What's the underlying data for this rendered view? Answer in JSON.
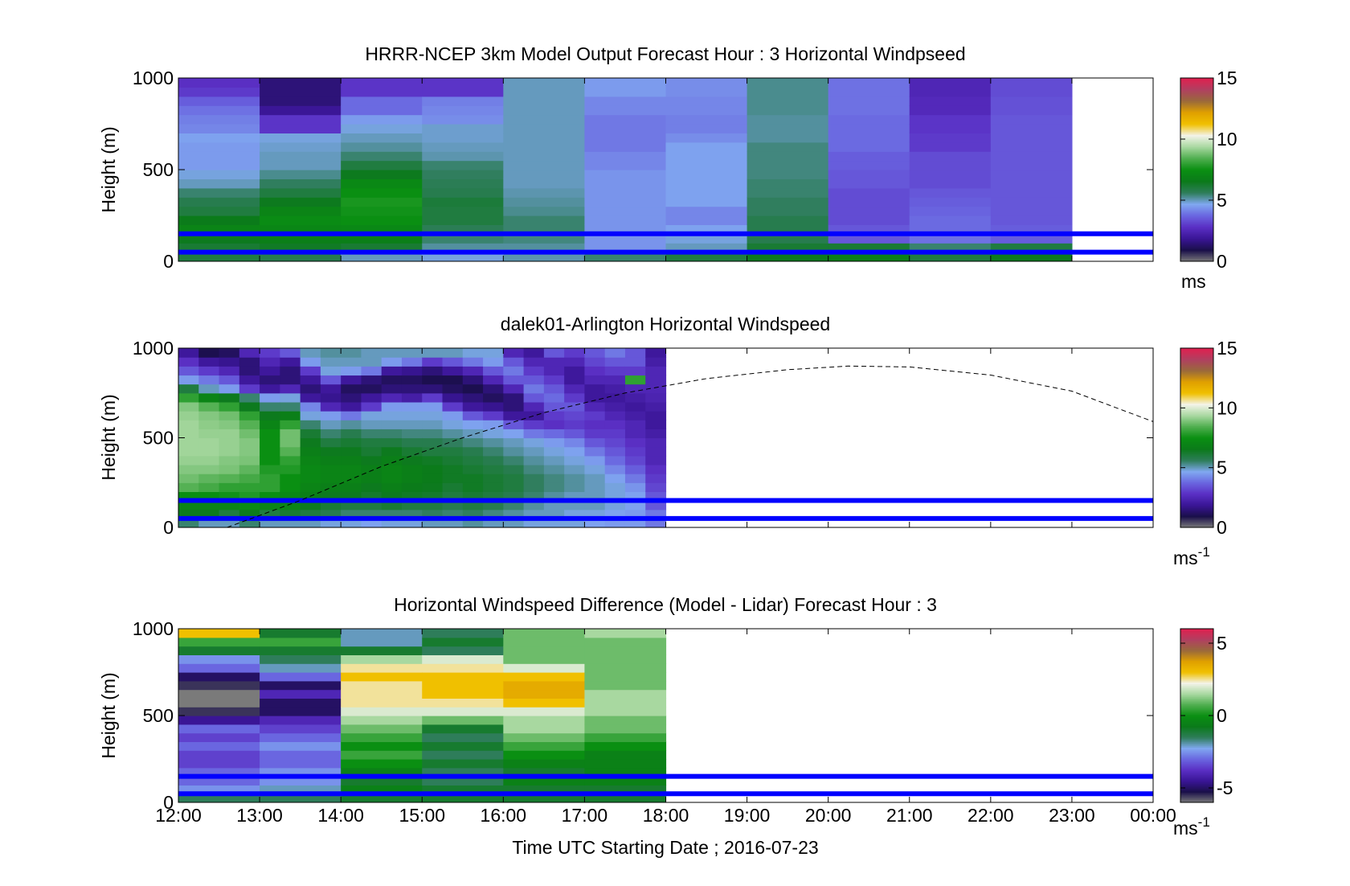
{
  "figure": {
    "xlabel": "Time UTC  Starting Date ; 2016-07-23",
    "x_ticks": [
      "12:00",
      "13:00",
      "14:00",
      "15:00",
      "16:00",
      "17:00",
      "18:00",
      "19:00",
      "20:00",
      "21:00",
      "22:00",
      "23:00",
      "00:00"
    ]
  },
  "colors": {
    "colormap": [
      "#7a7a7a",
      "#1a0f4a",
      "#3a1596",
      "#5a2fc4",
      "#6a66e0",
      "#80a8f0",
      "#2e7d5a",
      "#0b7a1a",
      "#0a8f12",
      "#4fae4f",
      "#a8d8a0",
      "#f3f3e8",
      "#f0c000",
      "#e0a000",
      "#9a6a3a",
      "#b04060",
      "#e02050"
    ],
    "reference_line": "#0000ff",
    "axis": "#000000"
  },
  "chart_data": [
    {
      "type": "heatmap",
      "title": "HRRR-NCEP 3km Model Output   Forecast Hour : 3 Horizontal Windpseed",
      "xlabel": "",
      "ylabel": "Height (m)",
      "xlim": [
        12,
        24
      ],
      "ylim": [
        0,
        1000
      ],
      "y_ticks": [
        0,
        500,
        1000
      ],
      "colorbar": {
        "label": "ms",
        "ticks": [
          0,
          5,
          10,
          15
        ],
        "range": [
          0,
          15
        ]
      },
      "columns_hours": [
        12,
        13,
        14,
        15,
        16,
        17,
        18,
        19,
        20,
        21,
        22
      ],
      "column_width_hours": 1,
      "heights": [
        25,
        75,
        125,
        175,
        225,
        275,
        325,
        375,
        425,
        475,
        525,
        575,
        625,
        675,
        725,
        775,
        825,
        875,
        925,
        975
      ],
      "values": [
        [
          6.0,
          6.2,
          6.5,
          7.0,
          6.6,
          6.0,
          5.8,
          5.5,
          5.0,
          4.8,
          4.5,
          4.5,
          4.5,
          4.6,
          4.2,
          4.1,
          3.9,
          3.6,
          3.0,
          2.8
        ],
        [
          5.8,
          6.4,
          6.8,
          7.1,
          7.3,
          7.0,
          6.5,
          6.0,
          5.6,
          5.3,
          5.0,
          5.0,
          4.9,
          4.8,
          2.9,
          2.9,
          1.9,
          1.5,
          1.5,
          1.5
        ],
        [
          5.0,
          6.2,
          6.8,
          7.2,
          7.5,
          7.6,
          7.7,
          7.5,
          7.2,
          6.5,
          6.0,
          5.5,
          5.2,
          5.0,
          4.8,
          4.5,
          3.8,
          3.8,
          2.9,
          2.9
        ],
        [
          4.8,
          5.2,
          5.5,
          5.7,
          6.0,
          6.0,
          6.1,
          5.8,
          5.7,
          5.6,
          5.5,
          5.1,
          5.0,
          4.9,
          4.9,
          4.3,
          4.2,
          4.1,
          2.9,
          2.9
        ],
        [
          5.1,
          5.2,
          5.4,
          5.5,
          5.5,
          5.3,
          5.2,
          5.1,
          5.0,
          5.0,
          5.0,
          5.0,
          5.0,
          5.0,
          5.0,
          5.0,
          5.0,
          5.0,
          5.0,
          5.0
        ],
        [
          5.5,
          4.4,
          4.4,
          4.4,
          4.4,
          4.4,
          4.4,
          4.4,
          4.4,
          4.4,
          4.2,
          4.2,
          4.0,
          4.0,
          4.0,
          4.0,
          4.2,
          4.2,
          4.5,
          4.5
        ],
        [
          6.0,
          5.0,
          4.8,
          4.6,
          4.2,
          4.2,
          4.6,
          4.6,
          4.6,
          4.6,
          4.6,
          4.6,
          4.6,
          4.3,
          4.1,
          4.1,
          4.2,
          4.2,
          4.3,
          4.3
        ],
        [
          6.5,
          6.2,
          5.8,
          5.8,
          5.8,
          5.6,
          5.6,
          5.5,
          5.5,
          5.4,
          5.4,
          5.4,
          5.4,
          5.2,
          5.2,
          5.2,
          5.3,
          5.3,
          5.3,
          5.3
        ],
        [
          6.8,
          6.2,
          3.5,
          3.5,
          3.3,
          3.3,
          3.3,
          3.3,
          3.5,
          3.5,
          3.6,
          3.6,
          3.8,
          3.8,
          3.8,
          3.8,
          3.9,
          3.9,
          3.9,
          3.9
        ],
        [
          6.0,
          5.5,
          3.9,
          3.8,
          3.8,
          3.7,
          3.6,
          3.5,
          3.3,
          3.3,
          3.3,
          3.3,
          3.0,
          3.0,
          2.9,
          2.9,
          2.6,
          2.6,
          2.5,
          2.5
        ],
        [
          6.5,
          6.0,
          3.6,
          3.6,
          3.5,
          3.5,
          3.5,
          3.5,
          3.5,
          3.5,
          3.5,
          3.5,
          3.5,
          3.5,
          3.5,
          3.5,
          3.4,
          3.4,
          3.3,
          3.3
        ]
      ],
      "reference_lines_m": [
        50,
        150
      ]
    },
    {
      "type": "heatmap",
      "title": "dalek01-Arlington  Horizontal Windspeed",
      "xlabel": "",
      "ylabel": "Height (m)",
      "xlim": [
        12,
        24
      ],
      "ylim": [
        0,
        1000
      ],
      "y_ticks": [
        0,
        500,
        1000
      ],
      "colorbar": {
        "label": "ms",
        "label_superscript": "-1",
        "ticks": [
          0,
          5,
          10,
          15
        ],
        "range": [
          0,
          15
        ]
      },
      "columns_hours": [
        12.0,
        12.25,
        12.5,
        12.75,
        13.0,
        13.25,
        13.5,
        13.75,
        14.0,
        14.25,
        14.5,
        14.75,
        15.0,
        15.25,
        15.5,
        15.75,
        16.0,
        16.25,
        16.5,
        16.75,
        17.0,
        17.25,
        17.5,
        17.75
      ],
      "column_width_hours": 0.25,
      "heights": [
        25,
        75,
        125,
        175,
        225,
        275,
        325,
        375,
        425,
        475,
        525,
        575,
        625,
        675,
        725,
        775,
        825,
        875,
        925,
        975
      ],
      "values": [
        [
          5.5,
          6.5,
          7.0,
          7.5,
          8.5,
          8.8,
          9.0,
          9.2,
          9.3,
          9.3,
          9.3,
          9.3,
          9.2,
          9.0,
          8.0,
          6.0,
          4.5,
          3.5,
          2.8,
          2.0
        ],
        [
          5.0,
          6.5,
          7.0,
          7.5,
          8.3,
          8.6,
          9.0,
          9.2,
          9.3,
          9.3,
          9.2,
          9.1,
          9.0,
          8.5,
          7.0,
          5.0,
          4.0,
          3.0,
          2.0,
          1.0
        ],
        [
          5.0,
          6.0,
          7.0,
          7.6,
          8.0,
          8.5,
          8.9,
          9.0,
          9.2,
          9.2,
          9.2,
          9.0,
          8.8,
          8.0,
          6.5,
          4.5,
          3.5,
          2.5,
          1.8,
          1.2
        ],
        [
          5.5,
          6.5,
          7.3,
          7.8,
          8.0,
          8.3,
          8.6,
          8.9,
          9.0,
          9.0,
          8.8,
          8.5,
          8.0,
          6.5,
          5.5,
          3.0,
          2.0,
          1.5,
          1.5,
          2.5
        ],
        [
          5.0,
          6.0,
          7.0,
          7.5,
          8.0,
          8.0,
          7.8,
          7.5,
          7.5,
          7.5,
          7.5,
          7.0,
          6.5,
          5.5,
          4.5,
          2.0,
          1.5,
          2.0,
          2.5,
          3.0
        ],
        [
          5.0,
          6.2,
          7.0,
          7.2,
          7.5,
          7.5,
          7.8,
          8.0,
          8.5,
          8.8,
          8.8,
          8.0,
          6.8,
          5.5,
          4.8,
          2.5,
          1.5,
          1.5,
          2.0,
          3.5
        ],
        [
          5.0,
          6.0,
          6.5,
          6.8,
          7.0,
          7.2,
          7.2,
          7.0,
          6.8,
          6.5,
          6.2,
          5.5,
          4.8,
          4.2,
          2.0,
          1.5,
          2.0,
          3.0,
          4.5,
          5.0
        ],
        [
          4.8,
          5.8,
          6.2,
          6.5,
          6.8,
          7.0,
          7.0,
          6.8,
          6.5,
          6.0,
          5.5,
          5.0,
          4.5,
          2.5,
          1.8,
          2.0,
          3.5,
          4.8,
          5.0,
          5.2
        ],
        [
          4.8,
          5.5,
          6.0,
          6.5,
          6.8,
          7.0,
          7.0,
          6.8,
          6.5,
          6.2,
          5.8,
          5.2,
          4.0,
          2.0,
          1.5,
          1.2,
          2.0,
          4.5,
          5.0,
          5.2
        ],
        [
          4.6,
          5.5,
          6.0,
          6.3,
          6.5,
          6.8,
          6.8,
          6.5,
          6.2,
          6.0,
          5.5,
          5.0,
          4.8,
          3.0,
          2.0,
          1.2,
          1.5,
          4.0,
          5.0,
          5.0
        ],
        [
          4.8,
          5.5,
          6.2,
          6.5,
          6.8,
          7.0,
          7.0,
          6.8,
          6.5,
          6.0,
          5.5,
          5.0,
          4.8,
          4.5,
          2.5,
          1.5,
          1.2,
          2.0,
          4.5,
          5.0
        ],
        [
          4.8,
          5.5,
          6.0,
          6.4,
          6.6,
          6.8,
          6.8,
          6.5,
          6.2,
          5.8,
          5.4,
          5.0,
          4.8,
          4.5,
          2.2,
          1.5,
          1.2,
          1.8,
          4.0,
          5.0
        ],
        [
          5.0,
          5.6,
          6.0,
          6.3,
          6.5,
          6.6,
          6.6,
          6.4,
          6.0,
          5.8,
          5.4,
          5.0,
          4.8,
          4.5,
          3.0,
          1.5,
          1.0,
          1.5,
          3.0,
          5.0
        ],
        [
          5.0,
          5.5,
          5.8,
          6.0,
          6.2,
          6.4,
          6.4,
          6.2,
          6.0,
          5.6,
          5.2,
          4.8,
          4.5,
          3.0,
          1.8,
          1.2,
          1.0,
          2.0,
          3.5,
          5.0
        ],
        [
          5.2,
          5.6,
          6.0,
          6.2,
          6.4,
          6.4,
          6.2,
          6.0,
          5.8,
          5.4,
          5.0,
          4.6,
          3.5,
          2.0,
          1.5,
          1.0,
          1.5,
          2.5,
          4.0,
          4.8
        ],
        [
          5.0,
          5.4,
          5.8,
          6.0,
          6.2,
          6.2,
          6.0,
          5.8,
          5.5,
          5.2,
          4.8,
          4.5,
          3.0,
          1.8,
          1.2,
          1.5,
          2.5,
          3.5,
          4.5,
          4.8
        ],
        [
          5.0,
          5.2,
          5.5,
          5.8,
          6.0,
          6.0,
          5.8,
          5.5,
          5.2,
          5.0,
          4.6,
          3.5,
          2.0,
          1.5,
          1.5,
          2.5,
          3.5,
          4.0,
          3.5,
          2.5
        ],
        [
          4.8,
          5.0,
          5.2,
          5.5,
          5.6,
          5.6,
          5.4,
          5.2,
          5.0,
          4.8,
          4.0,
          3.0,
          2.0,
          2.5,
          3.5,
          4.0,
          3.5,
          3.0,
          2.5,
          2.0
        ],
        [
          4.8,
          5.0,
          5.0,
          5.2,
          5.4,
          5.4,
          5.2,
          5.0,
          4.8,
          4.5,
          3.8,
          2.8,
          3.0,
          3.5,
          3.8,
          3.5,
          3.0,
          2.5,
          2.5,
          3.5
        ],
        [
          4.8,
          4.8,
          5.0,
          5.0,
          5.2,
          5.2,
          5.0,
          4.8,
          4.6,
          4.2,
          3.5,
          3.0,
          3.2,
          3.5,
          3.0,
          2.5,
          2.0,
          2.0,
          2.5,
          3.0
        ],
        [
          4.6,
          4.8,
          5.0,
          5.0,
          5.0,
          5.0,
          4.8,
          4.5,
          4.0,
          3.5,
          3.0,
          2.8,
          3.0,
          2.5,
          2.0,
          2.0,
          2.5,
          2.8,
          3.2,
          3.5
        ],
        [
          4.5,
          4.6,
          4.8,
          4.8,
          4.8,
          4.6,
          4.2,
          3.8,
          3.5,
          3.2,
          3.0,
          2.8,
          2.5,
          2.2,
          2.0,
          2.2,
          2.5,
          3.0,
          3.5,
          4.0
        ],
        [
          4.5,
          4.5,
          4.6,
          4.6,
          4.4,
          4.0,
          3.6,
          3.2,
          3.0,
          2.8,
          2.5,
          2.5,
          2.2,
          2.0,
          2.2,
          2.5,
          8.0,
          3.0,
          3.5,
          3.5
        ],
        [
          4.0,
          4.0,
          3.5,
          3.5,
          3.2,
          3.0,
          2.8,
          2.5,
          2.5,
          2.5,
          2.2,
          2.0,
          2.0,
          2.2,
          2.4,
          2.5,
          2.5,
          2.5,
          2.2,
          2.0
        ]
      ],
      "dashed_curve": {
        "x": [
          12.6,
          13.5,
          14.5,
          15.5,
          16.5,
          17.5,
          18.5,
          19.5,
          20.25,
          21.0,
          22.0,
          23.0,
          24.0
        ],
        "y": [
          0,
          150,
          340,
          500,
          640,
          750,
          830,
          880,
          900,
          895,
          850,
          760,
          590
        ]
      },
      "reference_lines_m": [
        50,
        150
      ]
    },
    {
      "type": "heatmap",
      "title": "Horizontal Windspeed Difference (Model - Lidar) Forecast Hour : 3",
      "xlabel": "Time UTC  Starting Date ; 2016-07-23",
      "ylabel": "Height (m)",
      "xlim": [
        12,
        24
      ],
      "ylim": [
        0,
        1000
      ],
      "y_ticks": [
        0,
        500,
        1000
      ],
      "colorbar": {
        "label": "ms",
        "label_superscript": "-1",
        "ticks": [
          -5,
          0,
          5
        ],
        "range": [
          -6,
          6
        ]
      },
      "columns_hours": [
        12,
        13,
        14,
        15,
        16,
        17
      ],
      "column_width_hours": 1,
      "heights": [
        25,
        75,
        125,
        175,
        225,
        275,
        325,
        375,
        425,
        475,
        525,
        575,
        625,
        675,
        725,
        775,
        825,
        875,
        925,
        975
      ],
      "values": [
        [
          -1.5,
          -2.5,
          -3.0,
          -3.0,
          -3.5,
          -3.5,
          -3.0,
          -3.5,
          -3.0,
          -4.5,
          -5.5,
          -6.0,
          -6.0,
          -5.5,
          -5.0,
          -3.0,
          -2.5,
          -1.0,
          0.5,
          3.0
        ],
        [
          -1.5,
          -2.0,
          -2.5,
          -2.5,
          -3.0,
          -3.0,
          -2.5,
          -3.0,
          -3.5,
          -4.0,
          -5.0,
          -5.0,
          -4.0,
          -5.0,
          -3.0,
          -2.0,
          -1.5,
          -1.0,
          0.5,
          -1.0
        ],
        [
          -1.0,
          -0.5,
          -1.0,
          -0.5,
          0.0,
          0.5,
          0.0,
          0.5,
          1.0,
          1.5,
          2.0,
          2.5,
          2.5,
          2.5,
          3.0,
          2.5,
          1.5,
          -1.0,
          -2.0,
          -2.0
        ],
        [
          -1.0,
          -1.0,
          -1.5,
          -1.5,
          -1.0,
          -1.5,
          -1.0,
          -1.5,
          -1.0,
          1.0,
          2.0,
          2.5,
          3.0,
          3.0,
          3.0,
          2.5,
          2.0,
          -1.5,
          -1.0,
          -1.5
        ],
        [
          -1.0,
          -1.0,
          -0.5,
          -1.0,
          -0.5,
          0.0,
          0.5,
          1.0,
          1.5,
          1.5,
          2.0,
          3.0,
          3.5,
          3.5,
          3.0,
          2.0,
          1.0,
          1.0,
          1.0,
          1.0
        ],
        [
          -1.0,
          -1.0,
          -0.5,
          -0.5,
          -0.5,
          -0.5,
          0.0,
          0.5,
          1.0,
          1.0,
          1.5,
          1.5,
          1.5,
          1.0,
          1.0,
          1.0,
          1.0,
          1.0,
          1.0,
          1.5
        ]
      ],
      "reference_lines_m": [
        50,
        150
      ]
    }
  ]
}
